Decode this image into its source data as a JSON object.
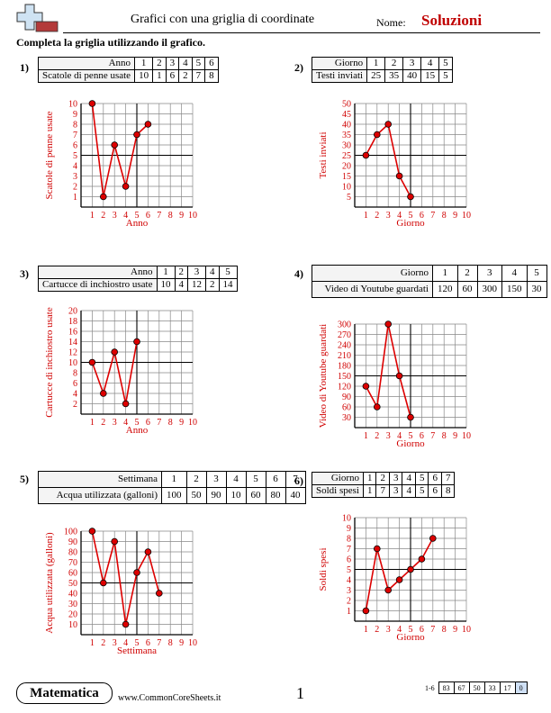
{
  "header": {
    "title": "Grafici con una griglia di coordinate",
    "name_label": "Nome:",
    "solutions": "Soluzioni",
    "instruction": "Completa la griglia utilizzando il grafico."
  },
  "colors": {
    "line": "#dd0000",
    "grid": "#888888",
    "axis": "#000000"
  },
  "problems": [
    {
      "number": "1)",
      "table": {
        "x_label": "Anno",
        "y_label": "Scatole di penne usate",
        "x": [
          "1",
          "2",
          "3",
          "4",
          "5",
          "6"
        ],
        "y": [
          "10",
          "1",
          "6",
          "2",
          "7",
          "8"
        ]
      },
      "chart_data": {
        "type": "line",
        "xlabel": "Anno",
        "ylabel": "Scatole di penne usate",
        "x_ticks": [
          1,
          2,
          3,
          4,
          5,
          6,
          7,
          8,
          9,
          10
        ],
        "y_ticks": [
          1,
          2,
          3,
          4,
          5,
          6,
          7,
          8,
          9,
          10
        ],
        "points": [
          [
            1,
            10
          ],
          [
            2,
            1
          ],
          [
            3,
            6
          ],
          [
            4,
            2
          ],
          [
            5,
            7
          ],
          [
            6,
            8
          ]
        ],
        "cross": [
          5,
          5
        ],
        "ylim": [
          0,
          10
        ],
        "xlim": [
          0,
          10
        ]
      }
    },
    {
      "number": "2)",
      "table": {
        "x_label": "Giorno",
        "y_label": "Testi inviati",
        "x": [
          "1",
          "2",
          "3",
          "4",
          "5"
        ],
        "y": [
          "25",
          "35",
          "40",
          "15",
          "5"
        ]
      },
      "chart_data": {
        "type": "line",
        "xlabel": "Giorno",
        "ylabel": "Testi inviati",
        "x_ticks": [
          1,
          2,
          3,
          4,
          5,
          6,
          7,
          8,
          9,
          10
        ],
        "y_ticks": [
          5,
          10,
          15,
          20,
          25,
          30,
          35,
          40,
          45,
          50
        ],
        "points": [
          [
            1,
            25
          ],
          [
            2,
            35
          ],
          [
            3,
            40
          ],
          [
            4,
            15
          ],
          [
            5,
            5
          ]
        ],
        "cross": [
          5,
          25
        ],
        "ylim": [
          0,
          50
        ],
        "xlim": [
          0,
          10
        ]
      }
    },
    {
      "number": "3)",
      "table": {
        "x_label": "Anno",
        "y_label": "Cartucce di inchiostro usate",
        "x": [
          "1",
          "2",
          "3",
          "4",
          "5"
        ],
        "y": [
          "10",
          "4",
          "12",
          "2",
          "14"
        ]
      },
      "chart_data": {
        "type": "line",
        "xlabel": "Anno",
        "ylabel": "Cartucce di inchiostro usate",
        "x_ticks": [
          1,
          2,
          3,
          4,
          5,
          6,
          7,
          8,
          9,
          10
        ],
        "y_ticks": [
          2,
          4,
          6,
          8,
          10,
          12,
          14,
          16,
          18,
          20
        ],
        "points": [
          [
            1,
            10
          ],
          [
            2,
            4
          ],
          [
            3,
            12
          ],
          [
            4,
            2
          ],
          [
            5,
            14
          ]
        ],
        "cross": [
          5,
          10
        ],
        "ylim": [
          0,
          20
        ],
        "xlim": [
          0,
          10
        ]
      }
    },
    {
      "number": "4)",
      "table": {
        "x_label": "Giorno",
        "y_label": "Video di Youtube guardati",
        "x": [
          "1",
          "2",
          "3",
          "4",
          "5"
        ],
        "y": [
          "120",
          "60",
          "300",
          "150",
          "30"
        ]
      },
      "chart_data": {
        "type": "line",
        "xlabel": "Giorno",
        "ylabel": "Video di Youtube guardati",
        "x_ticks": [
          1,
          2,
          3,
          4,
          5,
          6,
          7,
          8,
          9,
          10
        ],
        "y_ticks": [
          30,
          60,
          90,
          120,
          150,
          180,
          210,
          240,
          270,
          300
        ],
        "points": [
          [
            1,
            120
          ],
          [
            2,
            60
          ],
          [
            3,
            300
          ],
          [
            4,
            150
          ],
          [
            5,
            30
          ]
        ],
        "cross": [
          5,
          150
        ],
        "ylim": [
          0,
          300
        ],
        "xlim": [
          0,
          10
        ]
      }
    },
    {
      "number": "5)",
      "table": {
        "x_label": "Settimana",
        "y_label": "Acqua utilizzata (galloni)",
        "x": [
          "1",
          "2",
          "3",
          "4",
          "5",
          "6",
          "7"
        ],
        "y": [
          "100",
          "50",
          "90",
          "10",
          "60",
          "80",
          "40"
        ]
      },
      "chart_data": {
        "type": "line",
        "xlabel": "Settimana",
        "ylabel": "Acqua utilizzata (galloni)",
        "x_ticks": [
          1,
          2,
          3,
          4,
          5,
          6,
          7,
          8,
          9,
          10
        ],
        "y_ticks": [
          10,
          20,
          30,
          40,
          50,
          60,
          70,
          80,
          90,
          100
        ],
        "points": [
          [
            1,
            100
          ],
          [
            2,
            50
          ],
          [
            3,
            90
          ],
          [
            4,
            10
          ],
          [
            5,
            60
          ],
          [
            6,
            80
          ],
          [
            7,
            40
          ]
        ],
        "cross": [
          5,
          50
        ],
        "ylim": [
          0,
          100
        ],
        "xlim": [
          0,
          10
        ]
      }
    },
    {
      "number": "6)",
      "table": {
        "x_label": "Giorno",
        "y_label": "Soldi spesi",
        "x": [
          "1",
          "2",
          "3",
          "4",
          "5",
          "6",
          "7"
        ],
        "y": [
          "1",
          "7",
          "3",
          "4",
          "5",
          "6",
          "8"
        ]
      },
      "chart_data": {
        "type": "line",
        "xlabel": "Giorno",
        "ylabel": "Soldi spesi",
        "x_ticks": [
          1,
          2,
          3,
          4,
          5,
          6,
          7,
          8,
          9,
          10
        ],
        "y_ticks": [
          1,
          2,
          3,
          4,
          5,
          6,
          7,
          8,
          9,
          10
        ],
        "points": [
          [
            1,
            1
          ],
          [
            2,
            7
          ],
          [
            3,
            3
          ],
          [
            4,
            4
          ],
          [
            5,
            5
          ],
          [
            6,
            6
          ],
          [
            7,
            8
          ]
        ],
        "cross": [
          5,
          5
        ],
        "ylim": [
          0,
          10
        ],
        "xlim": [
          0,
          10
        ]
      }
    }
  ],
  "footer": {
    "subject": "Matematica",
    "site": "www.CommonCoreSheets.it",
    "page": "1",
    "score_label": "1-6",
    "scores": [
      "83",
      "67",
      "50",
      "33",
      "17",
      "0"
    ]
  }
}
